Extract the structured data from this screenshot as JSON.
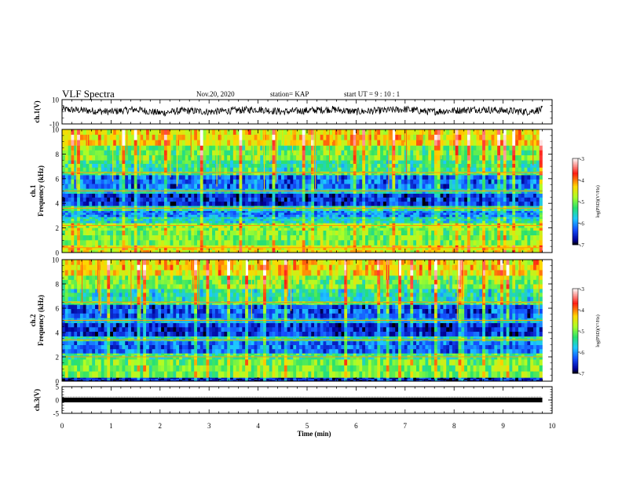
{
  "header": {
    "title": "VLF Spectra",
    "date": "Nov.20, 2020",
    "station": "station= KAP",
    "start": "start  UT =   9 : 10 : 1"
  },
  "chart_data": [
    {
      "type": "line",
      "panel": "ch1-waveform",
      "ylabel": "ch.1(V)",
      "ylim": [
        -10,
        10
      ],
      "yticks": [
        "10",
        "-10"
      ],
      "xlim": [
        0,
        10
      ],
      "series": [
        {
          "x": [
            0.0,
            0.5,
            1.0,
            1.5,
            2.0,
            2.5,
            3.0,
            3.5,
            4.0,
            4.5,
            5.0,
            5.5,
            6.0,
            6.5,
            7.0,
            7.5,
            8.0,
            8.5,
            9.0,
            9.5,
            9.8
          ],
          "values": [
            2,
            1,
            0,
            2,
            -1,
            1,
            0,
            1,
            2,
            0,
            1,
            2,
            0,
            1,
            2,
            0,
            1,
            2,
            1,
            0,
            2
          ]
        }
      ]
    },
    {
      "type": "heatmap",
      "panel": "ch1-spectrogram",
      "ylabel": "ch.1",
      "ylabel2": "Frequency (kHz)",
      "ylim": [
        0,
        10
      ],
      "yticks": [
        "0",
        "2",
        "4",
        "6",
        "8",
        "10"
      ],
      "xlim": [
        0,
        10
      ],
      "colorbar": {
        "label": "log(PSD)(V²/Hz)",
        "range": [
          -7,
          -3
        ],
        "ticks": [
          "-3",
          "-4",
          "-5",
          "-6",
          "-7"
        ],
        "colors": [
          "#ffffff",
          "#ff1010",
          "#ffcc00",
          "#b0ff20",
          "#20e060",
          "#20c8ff",
          "#1060ff",
          "#0000a0",
          "#000000"
        ]
      },
      "bands_khz": [
        {
          "lo": 0.0,
          "hi": 0.6,
          "level": -4.5
        },
        {
          "lo": 0.6,
          "hi": 1.8,
          "level": -5.0
        },
        {
          "lo": 1.8,
          "hi": 2.4,
          "level": -4.9
        },
        {
          "lo": 2.4,
          "hi": 2.9,
          "level": -5.6
        },
        {
          "lo": 2.9,
          "hi": 3.4,
          "level": -6.1
        },
        {
          "lo": 3.4,
          "hi": 3.8,
          "level": -5.4
        },
        {
          "lo": 3.8,
          "hi": 4.8,
          "level": -6.5
        },
        {
          "lo": 4.8,
          "hi": 5.2,
          "level": -5.7
        },
        {
          "lo": 5.2,
          "hi": 6.3,
          "level": -6.2
        },
        {
          "lo": 6.3,
          "hi": 6.6,
          "level": -5.2
        },
        {
          "lo": 6.6,
          "hi": 7.5,
          "level": -5.4
        },
        {
          "lo": 7.5,
          "hi": 8.7,
          "level": -5.0
        },
        {
          "lo": 8.7,
          "hi": 10.0,
          "level": -4.4
        }
      ],
      "lines_khz": [
        0.4,
        2.2,
        3.6,
        5.0,
        6.5
      ]
    },
    {
      "type": "heatmap",
      "panel": "ch2-spectrogram",
      "ylabel": "ch.2",
      "ylabel2": "Frequency (kHz)",
      "ylim": [
        0,
        10
      ],
      "yticks": [
        "0",
        "2",
        "4",
        "6",
        "8",
        "10"
      ],
      "xlim": [
        0,
        10
      ],
      "colorbar": {
        "label": "log(PSD)(V²/Hz)",
        "range": [
          -7,
          -3
        ],
        "ticks": [
          "-3",
          "-4",
          "-5",
          "-6",
          "-7"
        ],
        "colors": [
          "#ffffff",
          "#ff1010",
          "#ffcc00",
          "#b0ff20",
          "#20e060",
          "#20c8ff",
          "#1060ff",
          "#0000a0",
          "#000000"
        ]
      },
      "bands_khz": [
        {
          "lo": 0.0,
          "hi": 0.3,
          "level": -6.6
        },
        {
          "lo": 0.3,
          "hi": 1.8,
          "level": -5.0
        },
        {
          "lo": 1.8,
          "hi": 2.3,
          "level": -5.3
        },
        {
          "lo": 2.3,
          "hi": 3.3,
          "level": -6.2
        },
        {
          "lo": 3.3,
          "hi": 3.7,
          "level": -5.5
        },
        {
          "lo": 3.7,
          "hi": 4.8,
          "level": -6.5
        },
        {
          "lo": 4.8,
          "hi": 5.2,
          "level": -5.8
        },
        {
          "lo": 5.2,
          "hi": 6.3,
          "level": -6.3
        },
        {
          "lo": 6.3,
          "hi": 6.6,
          "level": -5.2
        },
        {
          "lo": 6.6,
          "hi": 7.6,
          "level": -5.5
        },
        {
          "lo": 7.6,
          "hi": 8.7,
          "level": -5.0
        },
        {
          "lo": 8.7,
          "hi": 10.0,
          "level": -4.4
        }
      ],
      "lines_khz": [
        2.0,
        3.4,
        5.0,
        6.5
      ]
    },
    {
      "type": "line",
      "panel": "ch3-waveform",
      "ylabel": "ch.3(V)",
      "ylim": [
        -5,
        5
      ],
      "yticks": [
        "5",
        "0",
        "-5"
      ],
      "xlim": [
        0,
        10
      ],
      "series": [
        {
          "x": [
            0.0,
            9.8
          ],
          "values": [
            0,
            0
          ]
        }
      ]
    }
  ],
  "xaxis": {
    "label": "Time (min)",
    "ticks": [
      "0",
      "1",
      "2",
      "3",
      "4",
      "5",
      "6",
      "7",
      "8",
      "9",
      "10"
    ]
  }
}
